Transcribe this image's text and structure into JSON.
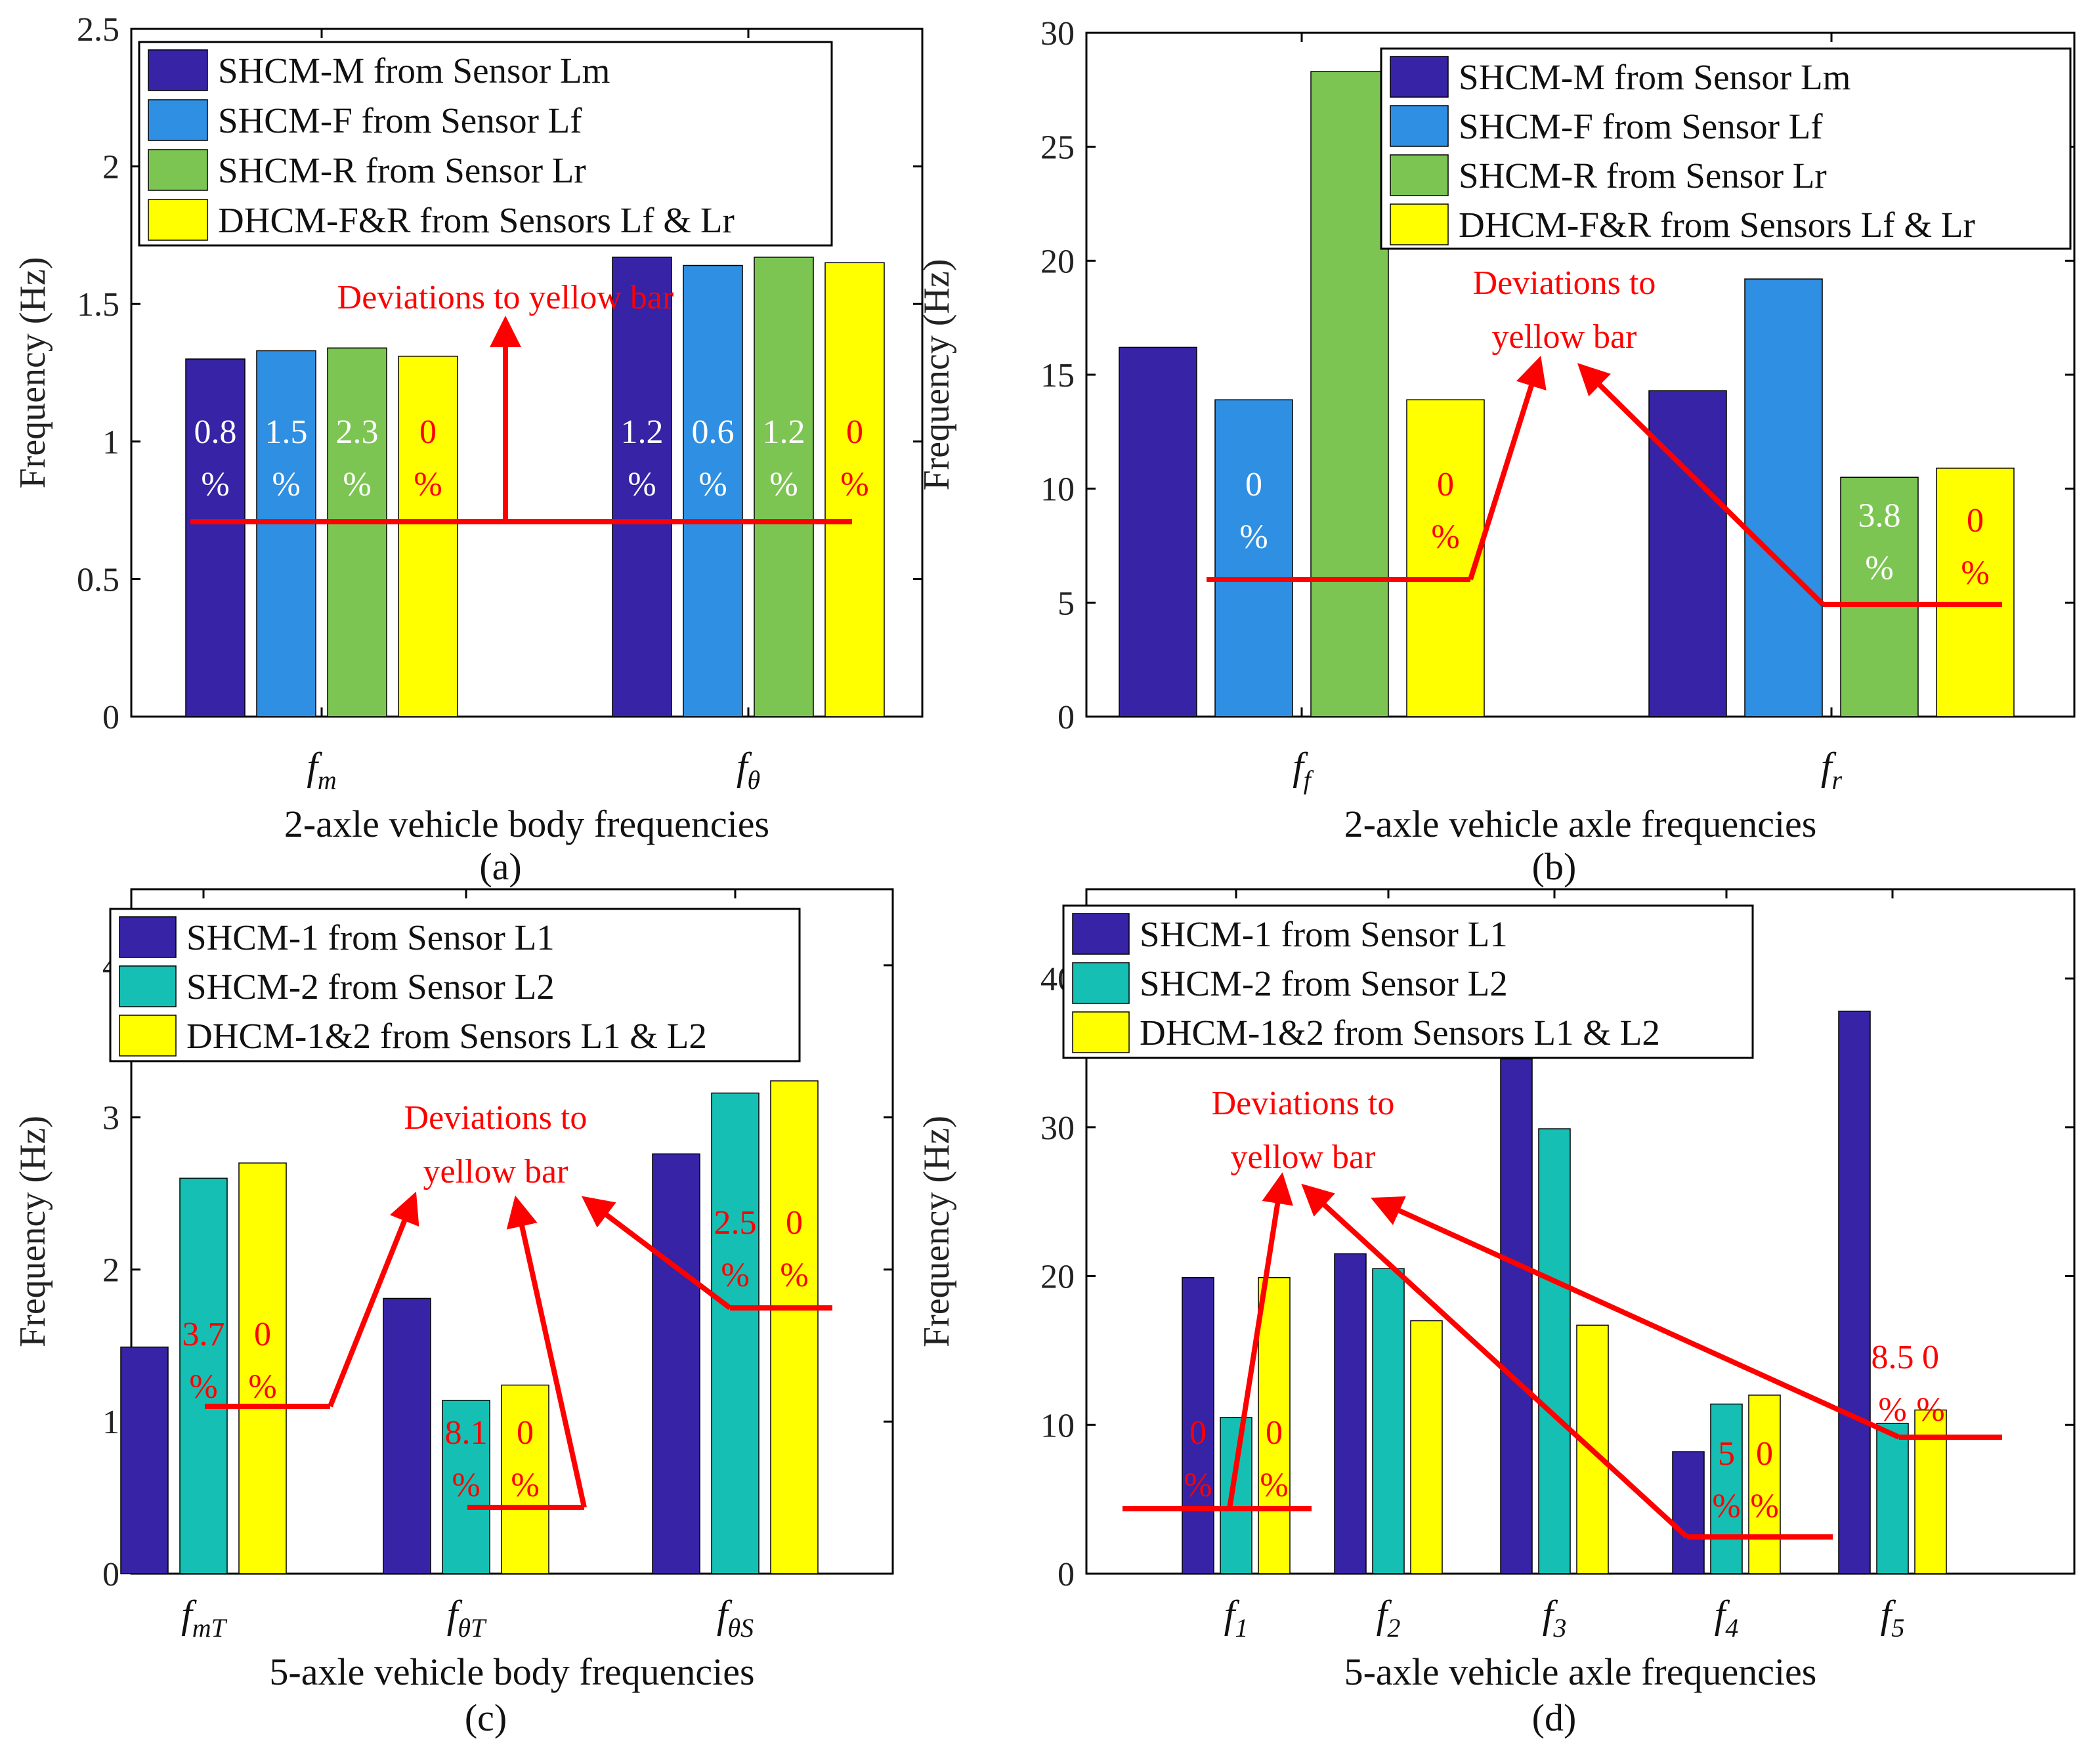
{
  "colors": {
    "SHCM-M": "#3623A6",
    "SHCM-F": "#2F8FE2",
    "SHCM-R": "#7DC553",
    "DHCM-F&R": "#FFFF00",
    "SHCM-1": "#3623A6",
    "SHCM-2": "#16BFB3",
    "DHCM-1&2": "#FFFF00",
    "annotation": "#FF0000",
    "deviation_white": "#FFFFFF"
  },
  "chart_data": [
    {
      "id": "a",
      "type": "bar",
      "panel_label": "(a)",
      "xlabel": "2-axle vehicle body frequencies",
      "ylabel": "Frequency (Hz)",
      "ylim": [
        0,
        2.5
      ],
      "yticks": [
        "0",
        "0.5",
        "1",
        "1.5",
        "2",
        "2.5"
      ],
      "categories": [
        {
          "main": "f",
          "sub": "m"
        },
        {
          "main": "f",
          "sub": "θ"
        }
      ],
      "series": [
        {
          "name": "SHCM-M from Sensor Lm",
          "color_key": "SHCM-M",
          "values": [
            1.3,
            1.67
          ],
          "deviations": [
            [
              "0.8",
              "%"
            ],
            [
              "1.2",
              "%"
            ]
          ],
          "dev_color": "white"
        },
        {
          "name": "SHCM-F from Sensor Lf",
          "color_key": "SHCM-F",
          "values": [
            1.33,
            1.64
          ],
          "deviations": [
            [
              "1.5",
              "%"
            ],
            [
              "0.6",
              "%"
            ]
          ],
          "dev_color": "white"
        },
        {
          "name": "SHCM-R from Sensor Lr",
          "color_key": "SHCM-R",
          "values": [
            1.34,
            1.67
          ],
          "deviations": [
            [
              "2.3",
              "%"
            ],
            [
              "1.2",
              "%"
            ]
          ],
          "dev_color": "white"
        },
        {
          "name": "DHCM-F&R from Sensors Lf & Lr",
          "color_key": "DHCM-F&R",
          "values": [
            1.31,
            1.65
          ],
          "deviations": [
            [
              "0",
              "%"
            ],
            [
              "0",
              "%"
            ]
          ],
          "dev_color": "red"
        }
      ],
      "annotation": {
        "lines": [
          "Deviations to yellow bar"
        ]
      },
      "legend_position": "top"
    },
    {
      "id": "b",
      "type": "bar",
      "panel_label": "(b)",
      "xlabel": "2-axle vehicle axle frequencies",
      "ylabel": "Frequency (Hz)",
      "ylim": [
        0,
        30
      ],
      "yticks": [
        "0",
        "5",
        "10",
        "15",
        "20",
        "25",
        "30"
      ],
      "categories": [
        {
          "main": "f",
          "sub": "f"
        },
        {
          "main": "f",
          "sub": "r"
        }
      ],
      "series": [
        {
          "name": "SHCM-M from Sensor Lm",
          "color_key": "SHCM-M",
          "values": [
            16.2,
            14.3
          ],
          "deviations": [
            null,
            null
          ],
          "dev_color": "white"
        },
        {
          "name": "SHCM-F from Sensor Lf",
          "color_key": "SHCM-F",
          "values": [
            13.9,
            19.2
          ],
          "deviations": [
            [
              "0",
              "%"
            ],
            null
          ],
          "dev_color": "white"
        },
        {
          "name": "SHCM-R from Sensor Lr",
          "color_key": "SHCM-R",
          "values": [
            28.3,
            10.5
          ],
          "deviations": [
            null,
            [
              "3.8",
              "%"
            ]
          ],
          "dev_color": "white"
        },
        {
          "name": "DHCM-F&R from Sensors Lf & Lr",
          "color_key": "DHCM-F&R",
          "values": [
            13.9,
            10.9
          ],
          "deviations": [
            [
              "0",
              "%"
            ],
            [
              "0",
              "%"
            ]
          ],
          "dev_color": "red"
        }
      ],
      "annotation": {
        "lines": [
          "Deviations to",
          "yellow bar"
        ]
      },
      "legend_position": "top-right"
    },
    {
      "id": "c",
      "type": "bar",
      "panel_label": "(c)",
      "xlabel": "5-axle vehicle body frequencies",
      "ylabel": "Frequency (Hz)",
      "ylim": [
        0,
        4.5
      ],
      "yticks": [
        "0",
        "1",
        "2",
        "3",
        "4"
      ],
      "categories": [
        {
          "main": "f",
          "sub": "mT"
        },
        {
          "main": "f",
          "sub": "θT"
        },
        {
          "main": "f",
          "sub": "θS"
        }
      ],
      "series": [
        {
          "name": "SHCM-1 from Sensor L1",
          "color_key": "SHCM-1",
          "values": [
            1.49,
            1.81,
            2.76
          ],
          "deviations": [
            null,
            null,
            null
          ],
          "dev_color": "red"
        },
        {
          "name": "SHCM-2 from Sensor L2",
          "color_key": "SHCM-2",
          "values": [
            2.6,
            1.14,
            3.16
          ],
          "deviations": [
            [
              "3.7",
              "%"
            ],
            [
              "8.1",
              "%"
            ],
            [
              "2.5",
              "%"
            ]
          ],
          "dev_color": "red"
        },
        {
          "name": "DHCM-1&2 from Sensors L1 & L2",
          "color_key": "DHCM-1&2",
          "values": [
            2.7,
            1.24,
            3.24
          ],
          "deviations": [
            [
              "0",
              "%"
            ],
            [
              "0",
              "%"
            ],
            [
              "0",
              "%"
            ]
          ],
          "dev_color": "red"
        }
      ],
      "annotation": {
        "lines": [
          "Deviations to",
          "yellow bar"
        ]
      },
      "legend_position": "top-left"
    },
    {
      "id": "d",
      "type": "bar",
      "panel_label": "(d)",
      "xlabel": "5-axle vehicle axle frequencies",
      "ylabel": "Frequency (Hz)",
      "ylim": [
        0,
        46
      ],
      "yticks": [
        "0",
        "10",
        "20",
        "30",
        "40"
      ],
      "categories": [
        {
          "main": "f",
          "sub": "1"
        },
        {
          "main": "f",
          "sub": "2"
        },
        {
          "main": "f",
          "sub": "3"
        },
        {
          "main": "f",
          "sub": "4"
        },
        {
          "main": "f",
          "sub": "5"
        }
      ],
      "series": [
        {
          "name": "SHCM-1 from Sensor L1",
          "color_key": "SHCM-1",
          "values": [
            19.9,
            21.5,
            34.6,
            8.2,
            37.8
          ],
          "deviations": [
            [
              "0",
              "%"
            ],
            null,
            null,
            null,
            null
          ],
          "dev_color": "red"
        },
        {
          "name": "SHCM-2 from Sensor L2",
          "color_key": "SHCM-2",
          "values": [
            10.5,
            20.5,
            29.9,
            11.4,
            10.1
          ],
          "deviations": [
            null,
            null,
            null,
            [
              "5",
              "%"
            ],
            [
              "8.5",
              "%"
            ]
          ],
          "dev_color": "red"
        },
        {
          "name": "DHCM-1&2 from Sensors L1 & L2",
          "color_key": "DHCM-1&2",
          "values": [
            19.9,
            17.0,
            16.7,
            12.0,
            11.0
          ],
          "deviations": [
            [
              "0",
              "%"
            ],
            null,
            null,
            [
              "0",
              "%"
            ],
            [
              "0",
              "%"
            ]
          ],
          "dev_color": "red"
        }
      ],
      "annotation": {
        "lines": [
          "Deviations to",
          "yellow bar"
        ]
      },
      "legend_position": "top-left"
    }
  ]
}
